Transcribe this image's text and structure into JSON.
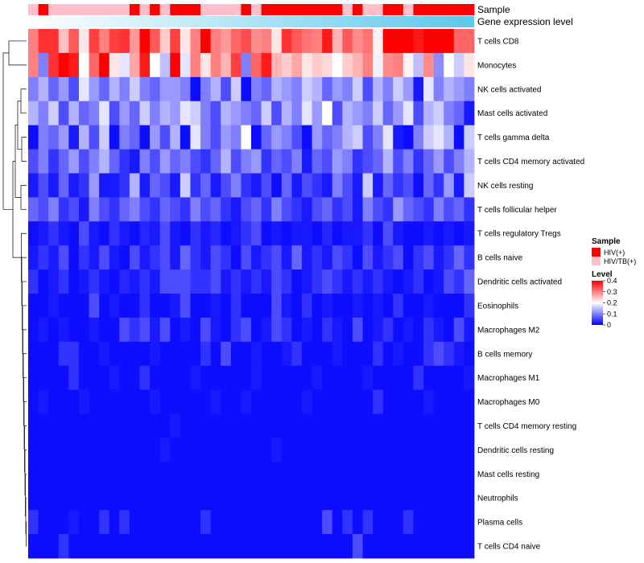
{
  "chart_data": {
    "type": "heatmap",
    "rows": [
      "T cells CD8",
      "Monocytes",
      "NK cells activated",
      "Mast cells activated",
      "T cells gamma delta",
      "T cells CD4 memory activated",
      "NK cells resting",
      "T cells follicular helper",
      "T cells regulatory  Tregs",
      "B cells naive",
      "Dendritic cells activated",
      "Eosinophils",
      "Macrophages M2",
      "B cells memory",
      "Macrophages M1",
      "Macrophages M0",
      "T cells CD4 memory resting",
      "Dendritic cells resting",
      "Mast cells resting",
      "Neutrophils",
      "Plasma cells",
      "T cells CD4 naive"
    ],
    "sample_groups": [
      "HIV/TB(+)",
      "HIV(+)",
      "HIV/TB(+)",
      "HIV/TB(+)",
      "HIV/TB(+)",
      "HIV/TB(+)",
      "HIV/TB(+)",
      "HIV/TB(+)",
      "HIV/TB(+)",
      "HIV/TB(+)",
      "HIV(+)",
      "HIV/TB(+)",
      "HIV(+)",
      "HIV/TB(+)",
      "HIV(+)",
      "HIV(+)",
      "HIV(+)",
      "HIV/TB(+)",
      "HIV/TB(+)",
      "HIV/TB(+)",
      "HIV/TB(+)",
      "HIV(+)",
      "HIV/TB(+)",
      "HIV(+)",
      "HIV(+)",
      "HIV(+)",
      "HIV(+)",
      "HIV(+)",
      "HIV(+)",
      "HIV(+)",
      "HIV(+)",
      "HIV/TB(+)",
      "HIV(+)",
      "HIV/TB(+)",
      "HIV/TB(+)",
      "HIV(+)",
      "HIV(+)",
      "HIV/TB(+)",
      "HIV(+)",
      "HIV(+)",
      "HIV(+)",
      "HIV(+)",
      "HIV(+)",
      "HIV(+)"
    ],
    "values": [
      [
        0.3,
        0.36,
        0.36,
        0.25,
        0.33,
        0.22,
        0.35,
        0.3,
        0.35,
        0.36,
        0.28,
        0.4,
        0.33,
        0.24,
        0.35,
        0.22,
        0.3,
        0.4,
        0.3,
        0.28,
        0.32,
        0.34,
        0.29,
        0.3,
        0.22,
        0.36,
        0.33,
        0.31,
        0.3,
        0.38,
        0.26,
        0.33,
        0.29,
        0.31,
        0.21,
        0.42,
        0.42,
        0.44,
        0.38,
        0.42,
        0.4,
        0.4,
        0.32,
        0.32
      ],
      [
        0.3,
        0.1,
        0.36,
        0.42,
        0.38,
        0.2,
        0.32,
        0.4,
        0.22,
        0.18,
        0.27,
        0.38,
        0.2,
        0.15,
        0.42,
        0.18,
        0.3,
        0.22,
        0.3,
        0.26,
        0.35,
        0.1,
        0.32,
        0.38,
        0.26,
        0.24,
        0.27,
        0.22,
        0.24,
        0.23,
        0.2,
        0.24,
        0.26,
        0.3,
        0.19,
        0.29,
        0.3,
        0.21,
        0.15,
        0.29,
        0.11,
        0.2,
        0.16,
        0.22
      ],
      [
        0.1,
        0.14,
        0.08,
        0.12,
        0.06,
        0.18,
        0.12,
        0.08,
        0.14,
        0.1,
        0.16,
        0.1,
        0.08,
        0.12,
        0.12,
        0.1,
        0.01,
        0.1,
        0.14,
        0.06,
        0.16,
        0.01,
        0.1,
        0.08,
        0.14,
        0.12,
        0.1,
        0.16,
        0.14,
        0.08,
        0.12,
        0.1,
        0.16,
        0.06,
        0.14,
        0.1,
        0.16,
        0.12,
        0.02,
        0.18,
        0.1,
        0.14,
        0.12,
        0.1
      ],
      [
        0.14,
        0.1,
        0.16,
        0.06,
        0.14,
        0.08,
        0.1,
        0.18,
        0.06,
        0.12,
        0.08,
        0.16,
        0.1,
        0.14,
        0.12,
        0.18,
        0.16,
        0.1,
        0.06,
        0.14,
        0.12,
        0.1,
        0.08,
        0.16,
        0.06,
        0.14,
        0.1,
        0.18,
        0.12,
        0.2,
        0.06,
        0.14,
        0.12,
        0.1,
        0.16,
        0.08,
        0.12,
        0.18,
        0.06,
        0.14,
        0.16,
        0.1,
        0.08,
        0.02
      ],
      [
        0.01,
        0.1,
        0.08,
        0.12,
        0.02,
        0.14,
        0.06,
        0.16,
        0.01,
        0.1,
        0.08,
        0.01,
        0.12,
        0.06,
        0.14,
        0.01,
        0.18,
        0.1,
        0.06,
        0.12,
        0.1,
        0.2,
        0.01,
        0.08,
        0.12,
        0.1,
        0.06,
        0.01,
        0.12,
        0.08,
        0.1,
        0.14,
        0.16,
        0.06,
        0.1,
        0.18,
        0.02,
        0.01,
        0.1,
        0.16,
        0.18,
        0.14,
        0.01,
        0.16
      ],
      [
        0.06,
        0.1,
        0.04,
        0.08,
        0.12,
        0.06,
        0.1,
        0.14,
        0.08,
        0.04,
        0.02,
        0.1,
        0.06,
        0.12,
        0.08,
        0.1,
        0.06,
        0.04,
        0.08,
        0.14,
        0.06,
        0.1,
        0.12,
        0.04,
        0.08,
        0.06,
        0.1,
        0.02,
        0.08,
        0.06,
        0.12,
        0.1,
        0.04,
        0.06,
        0.08,
        0.14,
        0.06,
        0.1,
        0.04,
        0.08,
        0.12,
        0.06,
        0.1,
        0.14
      ],
      [
        0.02,
        0.06,
        0.02,
        0.08,
        0.02,
        0.04,
        0.12,
        0.02,
        0.02,
        0.04,
        0.14,
        0.02,
        0.08,
        0.06,
        0.02,
        0.16,
        0.04,
        0.08,
        0.02,
        0.06,
        0.1,
        0.04,
        0.02,
        0.06,
        0.01,
        0.08,
        0.02,
        0.06,
        0.04,
        0.02,
        0.1,
        0.06,
        0.02,
        0.16,
        0.02,
        0.08,
        0.04,
        0.06,
        0.01,
        0.08,
        0.04,
        0.12,
        0.02,
        0.16
      ],
      [
        0.08,
        0.06,
        0.1,
        0.04,
        0.06,
        0.02,
        0.1,
        0.06,
        0.04,
        0.08,
        0.1,
        0.06,
        0.04,
        0.08,
        0.06,
        0.04,
        0.1,
        0.06,
        0.08,
        0.04,
        0.02,
        0.06,
        0.08,
        0.04,
        0.1,
        0.06,
        0.04,
        0.02,
        0.06,
        0.08,
        0.04,
        0.06,
        0.02,
        0.1,
        0.06,
        0.04,
        0.12,
        0.08,
        0.06,
        0.04,
        0.1,
        0.06,
        0.08,
        0.04
      ],
      [
        0.01,
        0.02,
        0.04,
        0.02,
        0.01,
        0.06,
        0.02,
        0.01,
        0.04,
        0.02,
        0.01,
        0.03,
        0.02,
        0.06,
        0.02,
        0.01,
        0.04,
        0.02,
        0.03,
        0.01,
        0.02,
        0.04,
        0.06,
        0.01,
        0.02,
        0.01,
        0.02,
        0.02,
        0.01,
        0.03,
        0.01,
        0.02,
        0.02,
        0.04,
        0.01,
        0.06,
        0.02,
        0.01,
        0.01,
        0.02,
        0.01,
        0.02,
        0.01,
        0.02
      ],
      [
        0.02,
        0.04,
        0.02,
        0.06,
        0.01,
        0.04,
        0.02,
        0.06,
        0.02,
        0.01,
        0.06,
        0.02,
        0.04,
        0.06,
        0.02,
        0.08,
        0.04,
        0.02,
        0.06,
        0.04,
        0.01,
        0.06,
        0.02,
        0.04,
        0.06,
        0.02,
        0.08,
        0.02,
        0.04,
        0.02,
        0.06,
        0.04,
        0.01,
        0.06,
        0.02,
        0.04,
        0.06,
        0.01,
        0.04,
        0.06,
        0.02,
        0.04,
        0.08,
        0.04
      ],
      [
        0.04,
        0.01,
        0.02,
        0.04,
        0.01,
        0.02,
        0.04,
        0.02,
        0.01,
        0.03,
        0.02,
        0.04,
        0.02,
        0.06,
        0.06,
        0.06,
        0.04,
        0.04,
        0.06,
        0.02,
        0.04,
        0.02,
        0.04,
        0.02,
        0.06,
        0.04,
        0.01,
        0.02,
        0.04,
        0.06,
        0.04,
        0.02,
        0.04,
        0.02,
        0.04,
        0.02,
        0.01,
        0.02,
        0.04,
        0.01,
        0.02,
        0.06,
        0.04,
        0.08
      ],
      [
        0.01,
        0.01,
        0.02,
        0.01,
        0.01,
        0.01,
        0.06,
        0.01,
        0.02,
        0.01,
        0.01,
        0.04,
        0.01,
        0.01,
        0.02,
        0.06,
        0.01,
        0.01,
        0.02,
        0.01,
        0.04,
        0.01,
        0.01,
        0.01,
        0.06,
        0.02,
        0.01,
        0.04,
        0.01,
        0.02,
        0.01,
        0.01,
        0.02,
        0.01,
        0.02,
        0.01,
        0.04,
        0.01,
        0.01,
        0.02,
        0.01,
        0.01,
        0.01,
        0.04
      ],
      [
        0.01,
        0.02,
        0.01,
        0.02,
        0.01,
        0.01,
        0.02,
        0.01,
        0.01,
        0.06,
        0.04,
        0.06,
        0.02,
        0.06,
        0.01,
        0.02,
        0.01,
        0.06,
        0.02,
        0.01,
        0.04,
        0.06,
        0.01,
        0.02,
        0.06,
        0.04,
        0.01,
        0.02,
        0.01,
        0.04,
        0.02,
        0.01,
        0.06,
        0.01,
        0.02,
        0.04,
        0.01,
        0.02,
        0.01,
        0.04,
        0.02,
        0.01,
        0.06,
        0.02
      ],
      [
        0.01,
        0.01,
        0.01,
        0.04,
        0.04,
        0.01,
        0.01,
        0.02,
        0.01,
        0.01,
        0.01,
        0.01,
        0.02,
        0.01,
        0.01,
        0.01,
        0.01,
        0.04,
        0.01,
        0.06,
        0.01,
        0.01,
        0.02,
        0.01,
        0.01,
        0.02,
        0.04,
        0.01,
        0.01,
        0.01,
        0.02,
        0.01,
        0.01,
        0.01,
        0.04,
        0.01,
        0.02,
        0.01,
        0.01,
        0.04,
        0.06,
        0.04,
        0.02,
        0.01
      ],
      [
        0.01,
        0.01,
        0.01,
        0.01,
        0.04,
        0.01,
        0.01,
        0.01,
        0.02,
        0.01,
        0.01,
        0.04,
        0.01,
        0.01,
        0.01,
        0.01,
        0.02,
        0.01,
        0.01,
        0.01,
        0.01,
        0.01,
        0.02,
        0.01,
        0.01,
        0.01,
        0.01,
        0.01,
        0.02,
        0.01,
        0.01,
        0.01,
        0.01,
        0.02,
        0.01,
        0.01,
        0.01,
        0.01,
        0.04,
        0.01,
        0.01,
        0.01,
        0.01,
        0.02
      ],
      [
        0.01,
        0.02,
        0.01,
        0.01,
        0.01,
        0.02,
        0.01,
        0.01,
        0.01,
        0.01,
        0.01,
        0.01,
        0.02,
        0.01,
        0.01,
        0.01,
        0.01,
        0.01,
        0.02,
        0.01,
        0.01,
        0.02,
        0.01,
        0.01,
        0.01,
        0.01,
        0.01,
        0.02,
        0.01,
        0.01,
        0.01,
        0.01,
        0.01,
        0.01,
        0.04,
        0.01,
        0.01,
        0.01,
        0.01,
        0.02,
        0.01,
        0.01,
        0.01,
        0.01
      ],
      [
        0.01,
        0.01,
        0.01,
        0.01,
        0.01,
        0.01,
        0.01,
        0.01,
        0.01,
        0.01,
        0.01,
        0.01,
        0.01,
        0.01,
        0.02,
        0.01,
        0.01,
        0.01,
        0.01,
        0.01,
        0.01,
        0.01,
        0.01,
        0.01,
        0.01,
        0.01,
        0.01,
        0.01,
        0.01,
        0.01,
        0.01,
        0.01,
        0.01,
        0.01,
        0.01,
        0.01,
        0.01,
        0.01,
        0.01,
        0.01,
        0.01,
        0.01,
        0.01,
        0.01
      ],
      [
        0.01,
        0.01,
        0.01,
        0.01,
        0.01,
        0.01,
        0.01,
        0.01,
        0.01,
        0.01,
        0.01,
        0.01,
        0.01,
        0.02,
        0.01,
        0.01,
        0.01,
        0.01,
        0.01,
        0.01,
        0.01,
        0.01,
        0.01,
        0.01,
        0.02,
        0.01,
        0.01,
        0.01,
        0.01,
        0.01,
        0.01,
        0.01,
        0.01,
        0.01,
        0.01,
        0.01,
        0.01,
        0.01,
        0.01,
        0.01,
        0.01,
        0.01,
        0.01,
        0.01
      ],
      [
        0.01,
        0.01,
        0.01,
        0.01,
        0.01,
        0.01,
        0.01,
        0.01,
        0.01,
        0.01,
        0.01,
        0.01,
        0.01,
        0.01,
        0.01,
        0.01,
        0.01,
        0.01,
        0.01,
        0.01,
        0.01,
        0.01,
        0.01,
        0.01,
        0.01,
        0.01,
        0.01,
        0.01,
        0.01,
        0.01,
        0.01,
        0.01,
        0.01,
        0.01,
        0.01,
        0.01,
        0.01,
        0.01,
        0.01,
        0.01,
        0.01,
        0.01,
        0.01,
        0.01
      ],
      [
        0.01,
        0.01,
        0.01,
        0.01,
        0.01,
        0.01,
        0.01,
        0.01,
        0.01,
        0.01,
        0.01,
        0.01,
        0.01,
        0.01,
        0.01,
        0.01,
        0.01,
        0.01,
        0.01,
        0.01,
        0.01,
        0.01,
        0.01,
        0.01,
        0.01,
        0.01,
        0.01,
        0.01,
        0.01,
        0.01,
        0.01,
        0.01,
        0.01,
        0.01,
        0.01,
        0.01,
        0.01,
        0.01,
        0.01,
        0.01,
        0.01,
        0.01,
        0.01,
        0.01
      ],
      [
        0.04,
        0.01,
        0.01,
        0.01,
        0.02,
        0.01,
        0.01,
        0.04,
        0.01,
        0.04,
        0.01,
        0.01,
        0.01,
        0.01,
        0.01,
        0.01,
        0.01,
        0.04,
        0.01,
        0.01,
        0.01,
        0.01,
        0.01,
        0.01,
        0.01,
        0.01,
        0.01,
        0.01,
        0.01,
        0.06,
        0.01,
        0.04,
        0.01,
        0.04,
        0.01,
        0.01,
        0.01,
        0.04,
        0.01,
        0.01,
        0.01,
        0.01,
        0.01,
        0.01
      ],
      [
        0.01,
        0.01,
        0.01,
        0.04,
        0.01,
        0.01,
        0.01,
        0.01,
        0.01,
        0.01,
        0.01,
        0.01,
        0.01,
        0.01,
        0.01,
        0.01,
        0.01,
        0.01,
        0.01,
        0.01,
        0.01,
        0.01,
        0.01,
        0.01,
        0.01,
        0.01,
        0.01,
        0.01,
        0.01,
        0.01,
        0.01,
        0.01,
        0.06,
        0.01,
        0.01,
        0.01,
        0.01,
        0.01,
        0.01,
        0.01,
        0.01,
        0.01,
        0.01,
        0.01
      ]
    ],
    "annotation_tracks": [
      "Sample",
      "Gene expression level"
    ],
    "gene_expression_gradient": [
      "#ffffff",
      "#5bc8ec"
    ],
    "legend_sample": {
      "title": "Sample",
      "entries": [
        {
          "label": "HIV(+)",
          "color": "#ff0000"
        },
        {
          "label": "HIV/TB(+)",
          "color": "#ffc0cb"
        }
      ]
    },
    "legend_level": {
      "title": "Level",
      "ticks": [
        "0.4",
        "0.3",
        "0.2",
        "0.1",
        "0"
      ],
      "range": [
        0,
        0.4
      ],
      "colors": [
        "#0000ff",
        "#ffffff",
        "#ff0000"
      ]
    }
  }
}
